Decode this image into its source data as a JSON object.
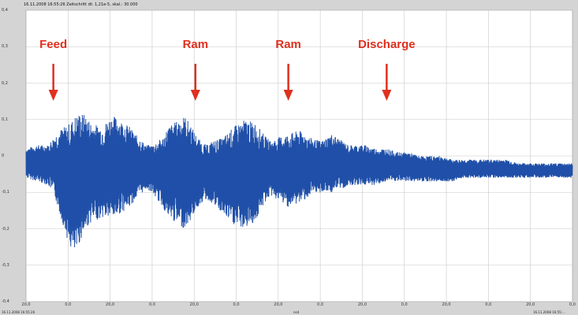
{
  "header": {
    "info": "16.11.2008 16:55:26   Zeitschritt dt: 1,21e-5, skal.: 30.000"
  },
  "footer": {
    "start": "16.11.2008 16:55:26",
    "unit": "nsd",
    "end": "16.11.2008 16:55:..."
  },
  "colors": {
    "signal": "#1f4fa8",
    "annotation": "#e0301f",
    "plot_bg": "#ffffff",
    "grid": "#c8c8c8"
  },
  "chart_data": {
    "type": "line",
    "title": "",
    "xlabel": "",
    "ylabel": "",
    "ylim": [
      -0.4,
      0.4
    ],
    "y_ticks": [
      "0,4",
      "0,3",
      "0,2",
      "0,1",
      "0",
      "-0,1",
      "-0,2",
      "-0,3",
      "-0,4"
    ],
    "y_tick_values": [
      0.4,
      0.3,
      0.2,
      0.1,
      0,
      -0.1,
      -0.2,
      -0.3,
      -0.4
    ],
    "x_ticks": [
      "20,0",
      "0,0",
      "20,0",
      "0,0",
      "20,0",
      "0,0",
      "20,0",
      "0,0",
      "20,0",
      "0,0",
      "20,0",
      "0,0",
      "20,0",
      "0,0"
    ],
    "grid": true,
    "series": [
      {
        "envelope_x": [
          0,
          2,
          4,
          5,
          6,
          7,
          8,
          9,
          10,
          11,
          12,
          14,
          15,
          16,
          17,
          18,
          19,
          20,
          22,
          23,
          24,
          25,
          26,
          28,
          29,
          30,
          31,
          32,
          33,
          34,
          36,
          38,
          40,
          42,
          44,
          45,
          46,
          48,
          50,
          52,
          54,
          55,
          56,
          57,
          58,
          59,
          60,
          62,
          64,
          66,
          68,
          70,
          72,
          74,
          76,
          78,
          80,
          82,
          84,
          86,
          88,
          90,
          92,
          94,
          96,
          98,
          100
        ],
        "upper": [
          0.02,
          0.03,
          0.03,
          0.05,
          0.07,
          0.08,
          0.09,
          0.11,
          0.12,
          0.11,
          0.09,
          0.08,
          0.1,
          0.11,
          0.1,
          0.09,
          0.08,
          0.06,
          0.03,
          0.03,
          0.04,
          0.05,
          0.08,
          0.1,
          0.11,
          0.09,
          0.06,
          0.04,
          0.03,
          0.04,
          0.05,
          0.08,
          0.1,
          0.09,
          0.05,
          0.04,
          0.05,
          0.06,
          0.07,
          0.05,
          0.04,
          0.05,
          0.06,
          0.05,
          0.04,
          0.03,
          0.03,
          0.03,
          0.02,
          0.02,
          0.01,
          0.01,
          0.0,
          0.0,
          0.0,
          -0.01,
          -0.01,
          -0.01,
          -0.01,
          -0.01,
          -0.01,
          -0.02,
          -0.02,
          -0.02,
          -0.02,
          -0.02,
          -0.02
        ],
        "lower": [
          -0.06,
          -0.07,
          -0.08,
          -0.1,
          -0.15,
          -0.2,
          -0.25,
          -0.27,
          -0.23,
          -0.2,
          -0.18,
          -0.17,
          -0.17,
          -0.17,
          -0.16,
          -0.15,
          -0.14,
          -0.12,
          -0.09,
          -0.1,
          -0.12,
          -0.14,
          -0.17,
          -0.19,
          -0.2,
          -0.18,
          -0.15,
          -0.13,
          -0.12,
          -0.13,
          -0.16,
          -0.19,
          -0.2,
          -0.18,
          -0.12,
          -0.11,
          -0.12,
          -0.14,
          -0.13,
          -0.11,
          -0.1,
          -0.1,
          -0.1,
          -0.09,
          -0.09,
          -0.08,
          -0.08,
          -0.08,
          -0.08,
          -0.07,
          -0.07,
          -0.07,
          -0.07,
          -0.07,
          -0.07,
          -0.07,
          -0.06,
          -0.06,
          -0.06,
          -0.06,
          -0.06,
          -0.06,
          -0.06,
          -0.06,
          -0.06,
          -0.06,
          -0.06
        ]
      }
    ],
    "annotations": [
      {
        "label": "Feed",
        "x": 5
      },
      {
        "label": "Ram",
        "x": 31
      },
      {
        "label": "Ram",
        "x": 48
      },
      {
        "label": "Discharge",
        "x": 66
      }
    ]
  }
}
